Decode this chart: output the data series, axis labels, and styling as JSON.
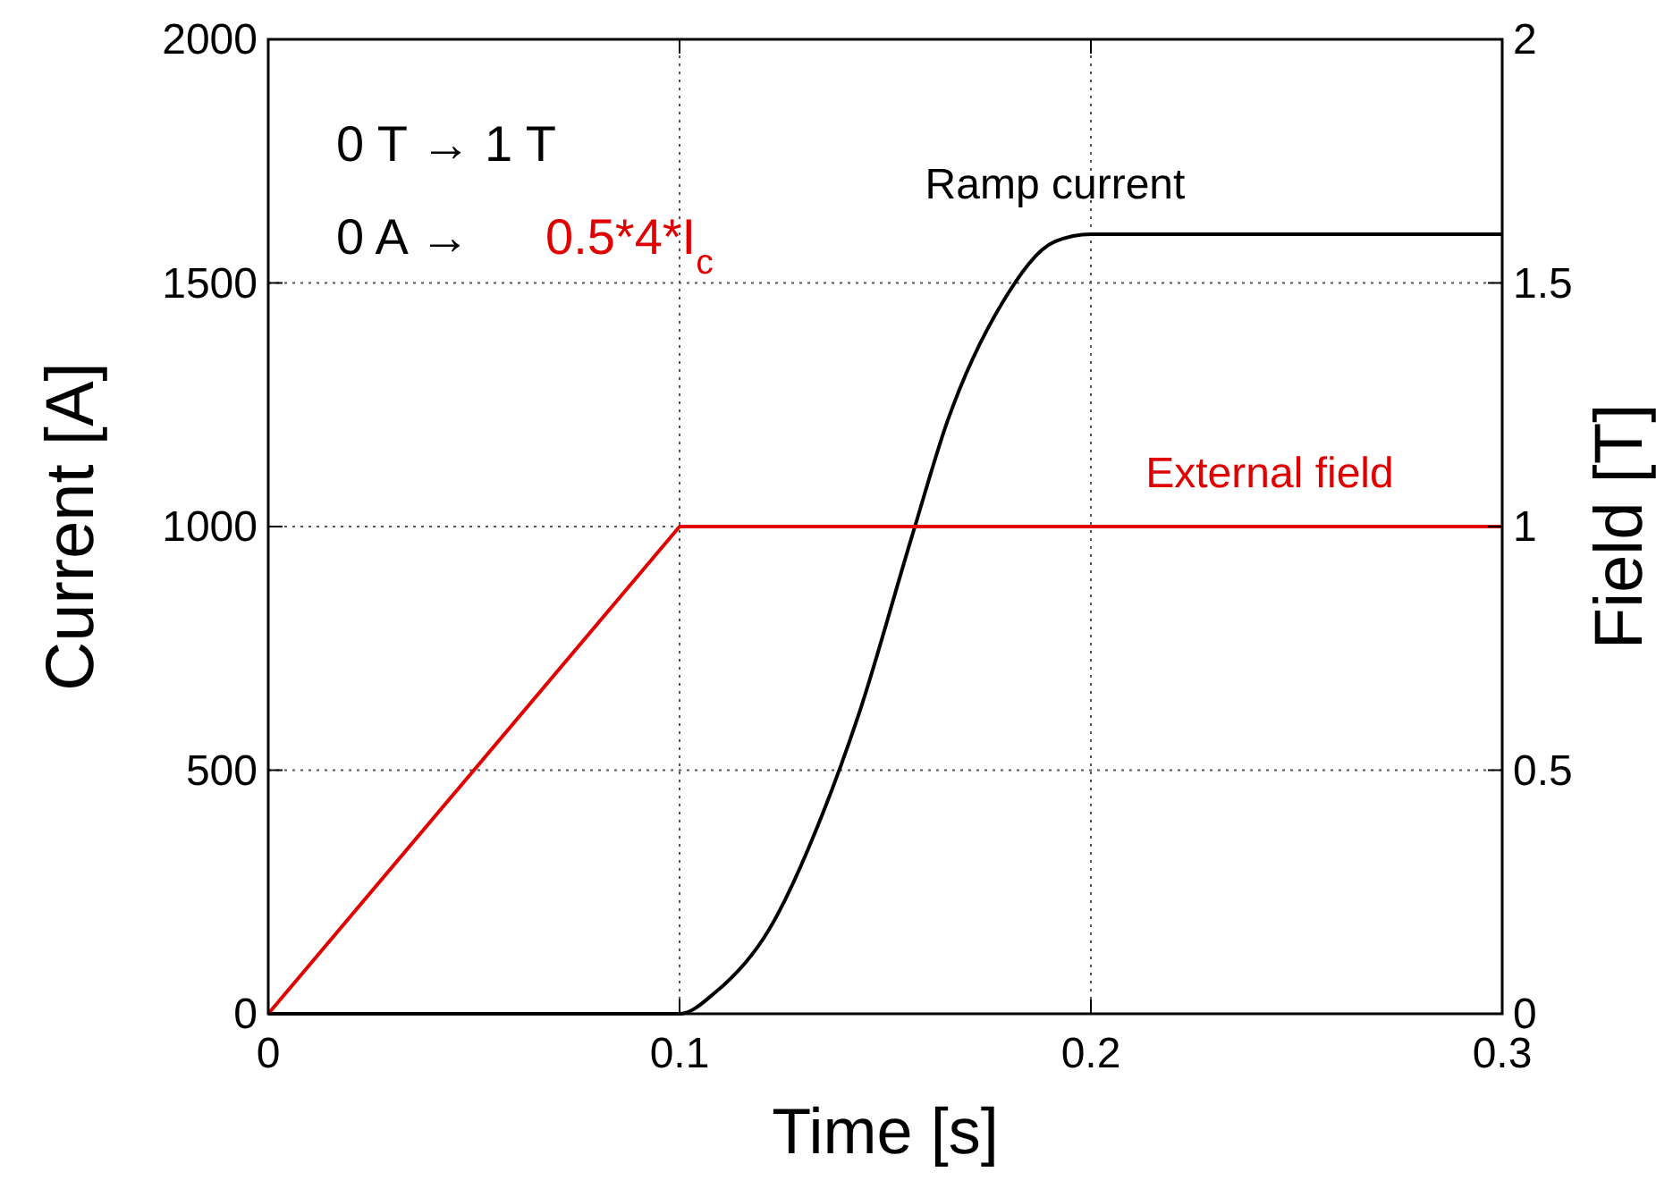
{
  "chart_data": {
    "type": "line",
    "xlabel": "Time [s]",
    "ylabel": "Current [A]",
    "y2label": "Field [T]",
    "xlim": [
      0,
      0.3
    ],
    "xticks": [
      0,
      0.1,
      0.2,
      0.3
    ],
    "ylim": [
      0,
      2000
    ],
    "yticks": [
      0,
      500,
      1000,
      1500,
      2000
    ],
    "y2lim": [
      0,
      2
    ],
    "y2ticks": [
      0,
      0.5,
      1,
      1.5,
      2
    ],
    "grid": true,
    "legend": false,
    "line_style": "solid",
    "marker": "none",
    "annotations": [
      "0 T → 1 T",
      "0 A →",
      "0.5*4*I$_{c}$"
    ],
    "series": [
      {
        "name": "Ramp current",
        "color": "#000000",
        "x": [
          0,
          0.1,
          0.1087,
          0.1217,
          0.1348,
          0.1435,
          0.1565,
          0.1652,
          0.1783,
          0.1913,
          0.2,
          0.3
        ],
        "values": [
          0,
          0,
          44,
          172,
          411,
          613,
          980,
          1218,
          1457,
          1585,
          1600,
          1600
        ]
      },
      {
        "name": "External field",
        "color": "#e00000",
        "axis": "y2",
        "x": [
          0,
          0.1,
          0.3
        ],
        "values": [
          0,
          1,
          1
        ]
      }
    ]
  }
}
